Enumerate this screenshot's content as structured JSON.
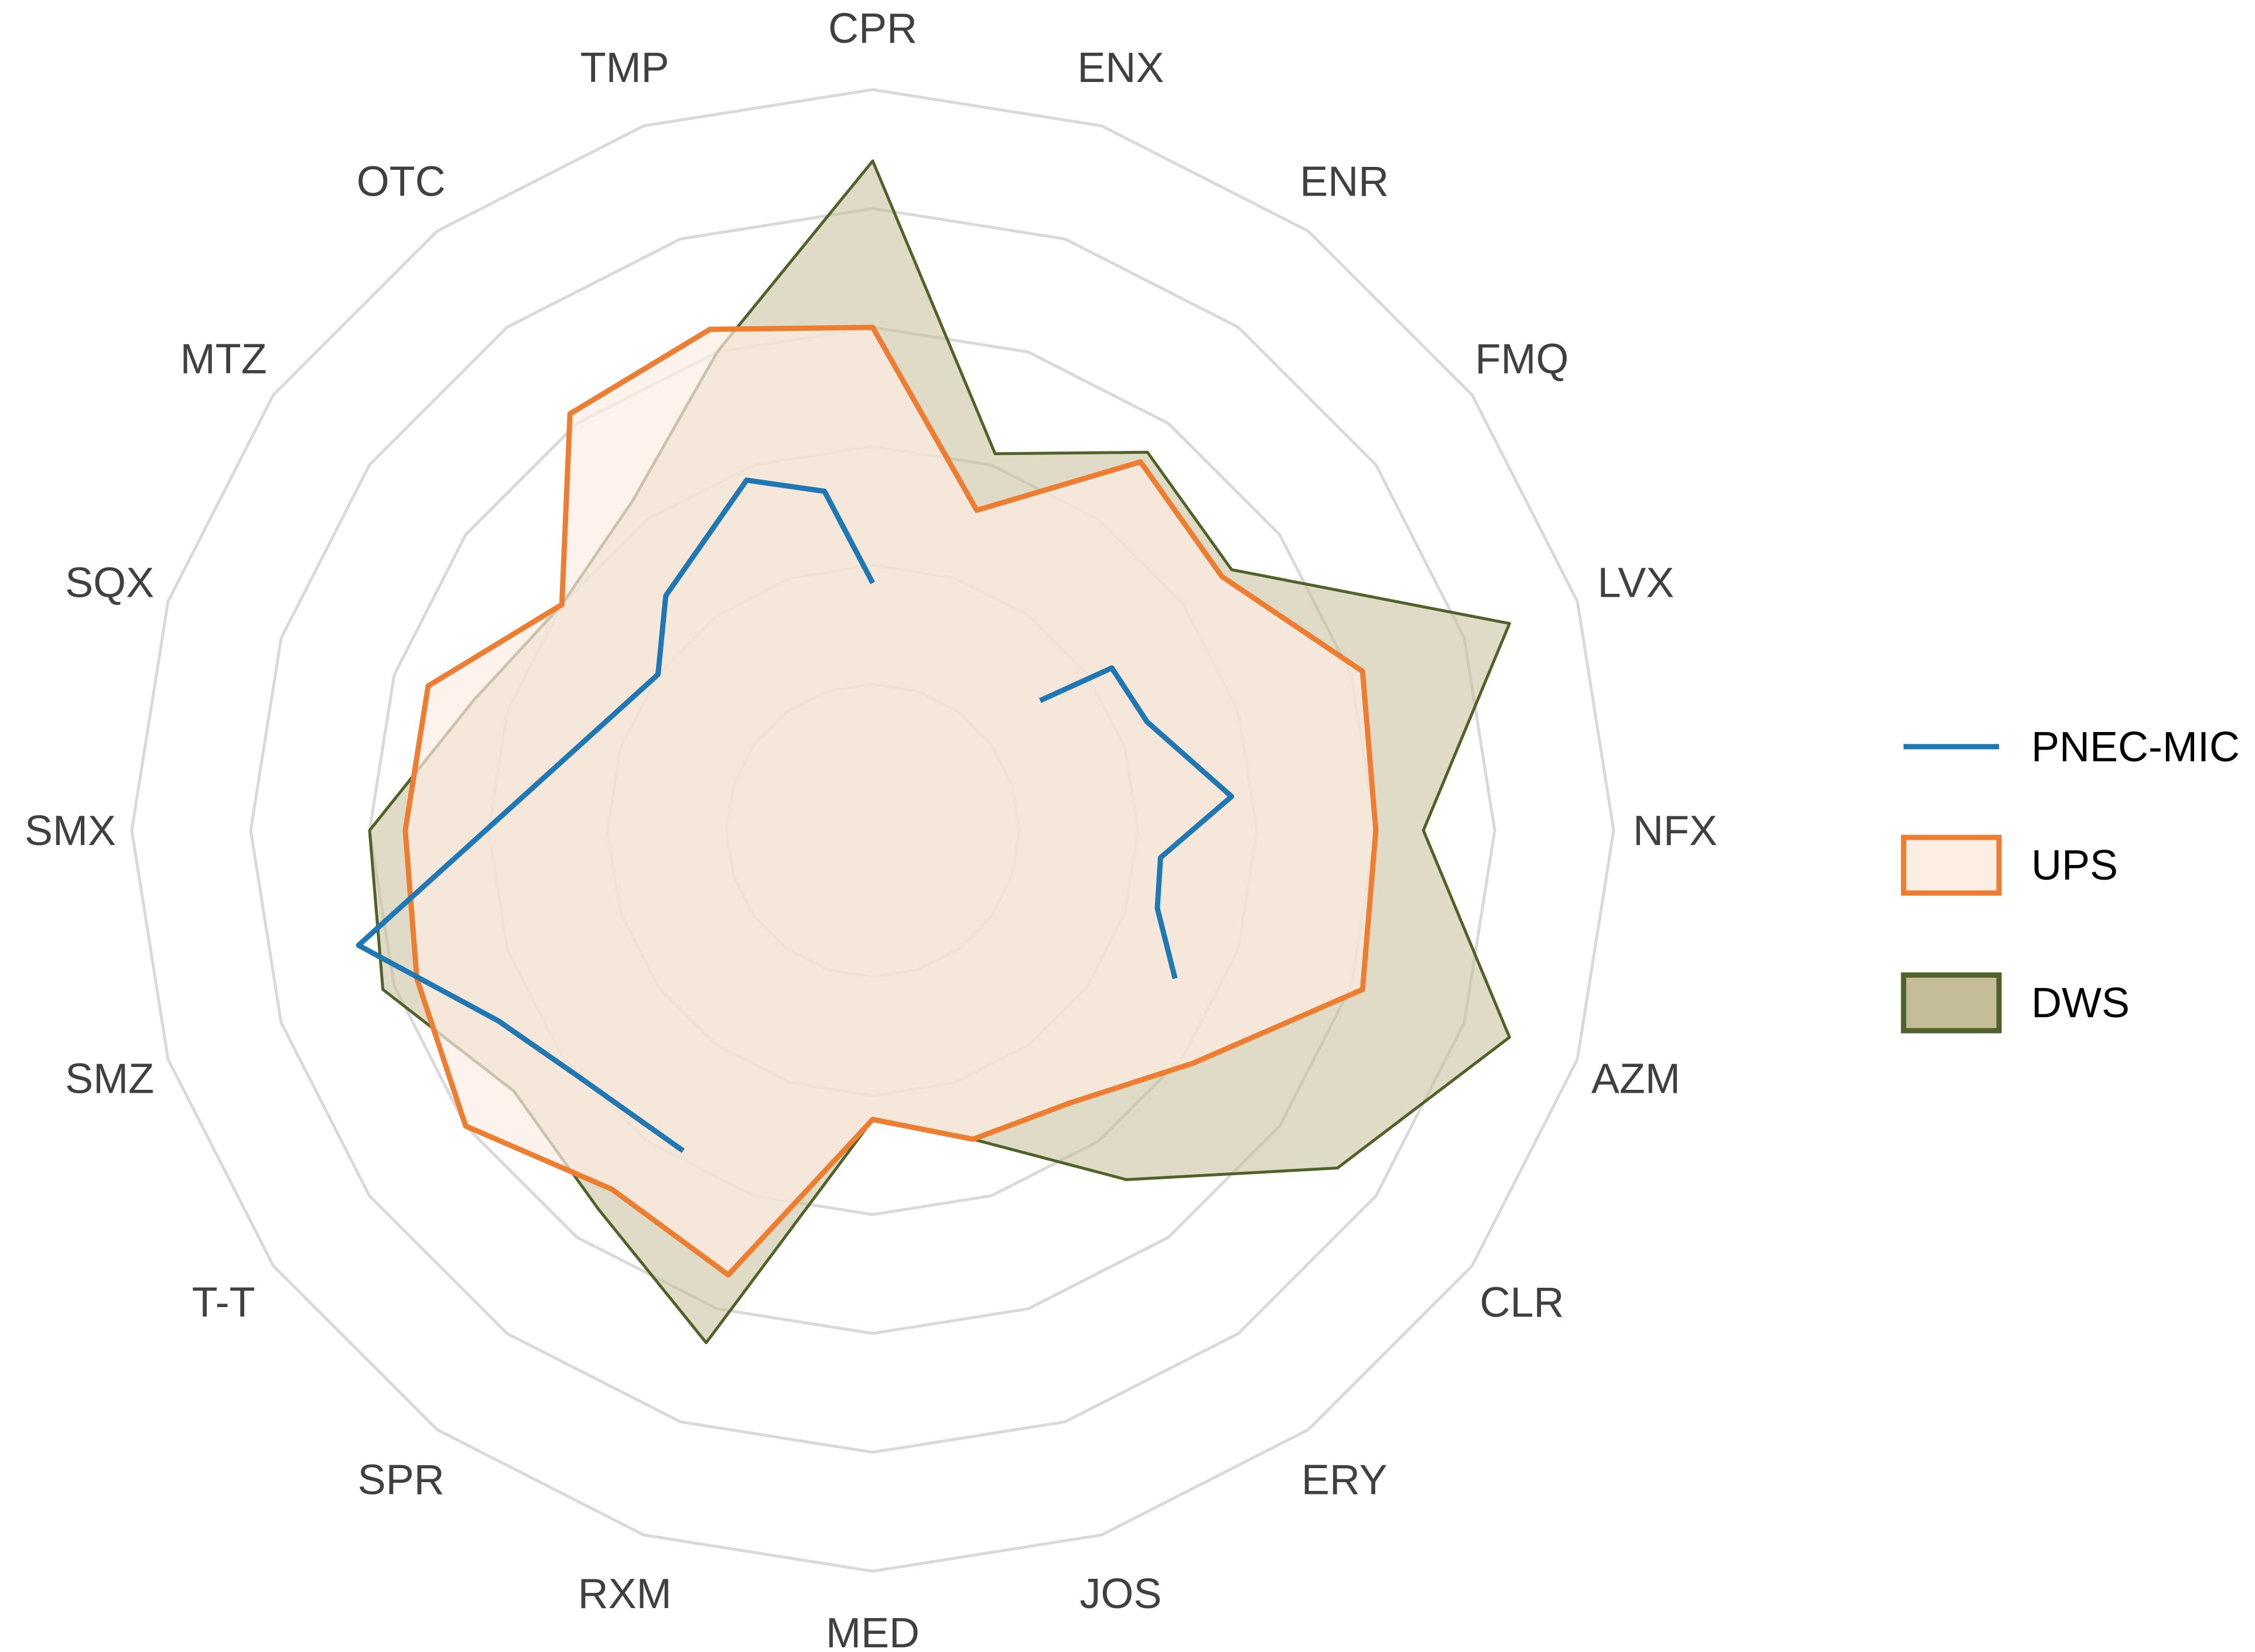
{
  "chart_data": {
    "type": "radar",
    "categories": [
      "CPR",
      "ENX",
      "ENR",
      "FMQ",
      "LVX",
      "NFX",
      "AZM",
      "CLR",
      "ERY",
      "JOS",
      "MED",
      "RXM",
      "SPR",
      "T-T",
      "SMZ",
      "SMX",
      "SQX",
      "MTZ",
      "OTC",
      "TMP"
    ],
    "ring_count": 5,
    "r_max": 5,
    "grid": true,
    "legend_position": "right",
    "series": [
      {
        "name": "PNEC-MIC",
        "kind": "line",
        "color": "#1f77b4",
        "values": [
          null,
          null,
          null,
          null,
          null,
          null,
          null,
          null,
          null,
          null,
          null,
          null,
          null,
          null,
          null,
          null,
          null,
          null,
          null,
          null
        ],
        "path_note": "",
        "points": [
          {
            "angle_idx": 0.0,
            "r": 0.85
          },
          {
            "angle_idx": 19.55,
            "r": 1.65
          },
          {
            "angle_idx": 18.9,
            "r": 1.9
          },
          {
            "angle_idx": 17.7,
            "r": 1.4
          },
          {
            "angle_idx": 17.0,
            "r": 1.0
          },
          {
            "angle_idx": 14.3,
            "r": 3.2
          },
          {
            "angle_idx": 13.5,
            "r": 2.3
          },
          {
            "angle_idx": 12.8,
            "r": 2.0
          },
          {
            "angle_idx": 11.7,
            "r": 1.9
          }
        ],
        "points2": [
          {
            "angle_idx": 2.9,
            "r": 0.55
          },
          {
            "angle_idx": 3.1,
            "r": 1.2
          },
          {
            "angle_idx": 3.8,
            "r": 1.25
          },
          {
            "angle_idx": 4.7,
            "r": 1.8
          },
          {
            "angle_idx": 5.3,
            "r": 1.2
          },
          {
            "angle_idx": 5.85,
            "r": 1.25
          },
          {
            "angle_idx": 6.45,
            "r": 1.6
          }
        ]
      },
      {
        "name": "UPS",
        "kind": "area",
        "color": "#ed7d31",
        "fill": "#fdeee4",
        "values": [
          3.0,
          1.6,
          2.6,
          2.4,
          3.1,
          3.0,
          3.1,
          2.1,
          1.6,
          1.5,
          1.2,
          2.7,
          2.5,
          3.0,
          2.8,
          2.7,
          2.7,
          2.0,
          3.1,
          3.2
        ]
      },
      {
        "name": "DWS",
        "kind": "area",
        "color": "#4f6228",
        "fill": "#c4bd97",
        "values": [
          4.4,
          2.1,
          2.7,
          2.5,
          4.4,
          3.4,
          4.4,
          3.6,
          2.4,
          1.5,
          1.2,
          3.3,
          2.7,
          2.5,
          3.1,
          3.0,
          2.3,
          2.0,
          2.2,
          3.0
        ]
      }
    ]
  }
}
